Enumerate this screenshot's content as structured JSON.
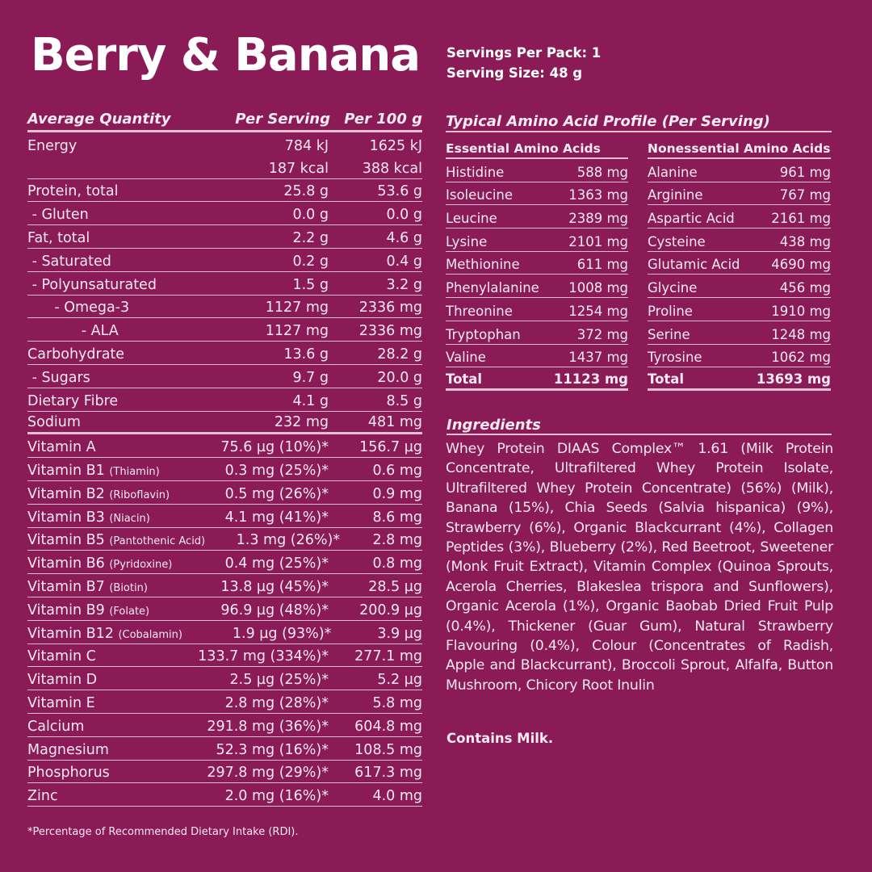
{
  "title": "Berry & Banana",
  "servings_per_pack": "Servings Per Pack: 1",
  "serving_size": "Serving Size: 48 g",
  "nutrition": {
    "headers": {
      "name": "Average Quantity",
      "per_serving": "Per Serving",
      "per_100g": "Per 100 g"
    },
    "rows": [
      {
        "name": "Energy",
        "note": "",
        "per_serving": "784 kJ",
        "per_100g": "1625 kJ",
        "style": "nob"
      },
      {
        "name": "",
        "note": "",
        "per_serving": "187 kcal",
        "per_100g": "388 kcal",
        "style": ""
      },
      {
        "name": "Protein, total",
        "note": "",
        "per_serving": "25.8 g",
        "per_100g": "53.6 g",
        "style": ""
      },
      {
        "name": " - Gluten",
        "note": "",
        "per_serving": "0.0 g",
        "per_100g": "0.0 g",
        "style": ""
      },
      {
        "name": "Fat, total",
        "note": "",
        "per_serving": "2.2 g",
        "per_100g": "4.6 g",
        "style": ""
      },
      {
        "name": " - Saturated",
        "note": "",
        "per_serving": "0.2 g",
        "per_100g": "0.4 g",
        "style": ""
      },
      {
        "name": " - Polyunsaturated",
        "note": "",
        "per_serving": "1.5 g",
        "per_100g": "3.2 g",
        "style": ""
      },
      {
        "name": "      - Omega-3",
        "note": "",
        "per_serving": "1127 mg",
        "per_100g": "2336 mg",
        "style": ""
      },
      {
        "name": "            - ALA",
        "note": "",
        "per_serving": "1127 mg",
        "per_100g": "2336 mg",
        "style": ""
      },
      {
        "name": "Carbohydrate",
        "note": "",
        "per_serving": "13.6 g",
        "per_100g": "28.2 g",
        "style": ""
      },
      {
        "name": " - Sugars",
        "note": "",
        "per_serving": "9.7 g",
        "per_100g": "20.0 g",
        "style": ""
      },
      {
        "name": "Dietary Fibre",
        "note": "",
        "per_serving": "4.1 g",
        "per_100g": "8.5 g",
        "style": ""
      },
      {
        "name": "Sodium",
        "note": "",
        "per_serving": "232 mg",
        "per_100g": "481 mg",
        "style": "thick"
      },
      {
        "name": "Vitamin A",
        "note": "",
        "per_serving": "75.6 µg (10%)*",
        "per_100g": "156.7 µg",
        "style": ""
      },
      {
        "name": "Vitamin B1",
        "note": "(Thiamin)",
        "per_serving": "0.3 mg (25%)*",
        "per_100g": "0.6 mg",
        "style": ""
      },
      {
        "name": "Vitamin B2",
        "note": "(Riboflavin)",
        "per_serving": "0.5 mg (26%)*",
        "per_100g": "0.9 mg",
        "style": ""
      },
      {
        "name": "Vitamin B3",
        "note": "(Niacin)",
        "per_serving": "4.1 mg (41%)*",
        "per_100g": "8.6 mg",
        "style": ""
      },
      {
        "name": "Vitamin B5",
        "note": "(Pantothenic Acid)",
        "per_serving": "1.3 mg (26%)*",
        "per_100g": "2.8 mg",
        "style": ""
      },
      {
        "name": "Vitamin B6",
        "note": "(Pyridoxine)",
        "per_serving": "0.4 mg (25%)*",
        "per_100g": "0.8 mg",
        "style": ""
      },
      {
        "name": "Vitamin B7",
        "note": "(Biotin)",
        "per_serving": "13.8 µg (45%)*",
        "per_100g": "28.5 µg",
        "style": ""
      },
      {
        "name": "Vitamin B9",
        "note": "(Folate)",
        "per_serving": "96.9 µg (48%)*",
        "per_100g": "200.9 µg",
        "style": ""
      },
      {
        "name": "Vitamin B12",
        "note": "(Cobalamin)",
        "per_serving": "1.9 µg (93%)*",
        "per_100g": "3.9 µg",
        "style": ""
      },
      {
        "name": "Vitamin C",
        "note": "",
        "per_serving": "133.7 mg (334%)*",
        "per_100g": "277.1 mg",
        "style": ""
      },
      {
        "name": "Vitamin D",
        "note": "",
        "per_serving": "2.5 µg (25%)*",
        "per_100g": "5.2 µg",
        "style": ""
      },
      {
        "name": "Vitamin E",
        "note": "",
        "per_serving": "2.8 mg (28%)*",
        "per_100g": "5.8 mg",
        "style": ""
      },
      {
        "name": "Calcium",
        "note": "",
        "per_serving": "291.8 mg (36%)*",
        "per_100g": "604.8 mg",
        "style": ""
      },
      {
        "name": "Magnesium",
        "note": "",
        "per_serving": "52.3 mg (16%)*",
        "per_100g": "108.5 mg",
        "style": ""
      },
      {
        "name": "Phosphorus",
        "note": "",
        "per_serving": "297.8 mg (29%)*",
        "per_100g": "617.3 mg",
        "style": ""
      },
      {
        "name": "Zinc",
        "note": "",
        "per_serving": "2.0 mg (16%)*",
        "per_100g": "4.0 mg",
        "style": ""
      }
    ],
    "footnote": "*Percentage of Recommended Dietary Intake (RDI)."
  },
  "amino": {
    "title": "Typical Amino Acid Profile (Per Serving)",
    "essential": {
      "heading": "Essential Amino Acids",
      "rows": [
        [
          "Histidine",
          "588 mg"
        ],
        [
          "Isoleucine",
          "1363 mg"
        ],
        [
          "Leucine",
          "2389 mg"
        ],
        [
          "Lysine",
          "2101 mg"
        ],
        [
          "Methionine",
          "611 mg"
        ],
        [
          "Phenylalanine",
          "1008 mg"
        ],
        [
          "Threonine",
          "1254 mg"
        ],
        [
          "Tryptophan",
          "372 mg"
        ],
        [
          "Valine",
          "1437 mg"
        ]
      ],
      "total": [
        "Total",
        "11123 mg"
      ]
    },
    "nonessential": {
      "heading": "Nonessential Amino Acids",
      "rows": [
        [
          "Alanine",
          "961 mg"
        ],
        [
          "Arginine",
          "767 mg"
        ],
        [
          "Aspartic Acid",
          "2161 mg"
        ],
        [
          "Cysteine",
          "438 mg"
        ],
        [
          "Glutamic Acid",
          "4690 mg"
        ],
        [
          "Glycine",
          "456 mg"
        ],
        [
          "Proline",
          "1910 mg"
        ],
        [
          "Serine",
          "1248 mg"
        ],
        [
          "Tyrosine",
          "1062 mg"
        ]
      ],
      "total": [
        "Total",
        "13693 mg"
      ]
    }
  },
  "ingredients": {
    "heading": "Ingredients",
    "text": "Whey Protein DIAAS Complex™ 1.61 (Milk Protein Concentrate, Ultrafiltered Whey Protein Isolate, Ultrafiltered Whey Protein Concentrate) (56%) (Milk), Banana (15%), Chia Seeds (Salvia hispanica) (9%), Strawberry (6%), Organic Blackcurrant (4%), Collagen Peptides (3%), Blueberry (2%), Red Beetroot, Sweetener (Monk Fruit Extract), Vitamin Complex (Quinoa Sprouts, Acerola Cherries, Blakeslea trispora and Sunflowers), Organic Acerola (1%), Organic Baobab Dried Fruit Pulp (0.4%), Thickener (Guar Gum), Natural Strawberry Flavouring (0.4%), Colour (Concentrates of Radish, Apple and Blackcurrant), Broccoli Sprout, Alfalfa, Button Mushroom, Chicory Root Inulin",
    "allergen": "Contains Milk."
  }
}
